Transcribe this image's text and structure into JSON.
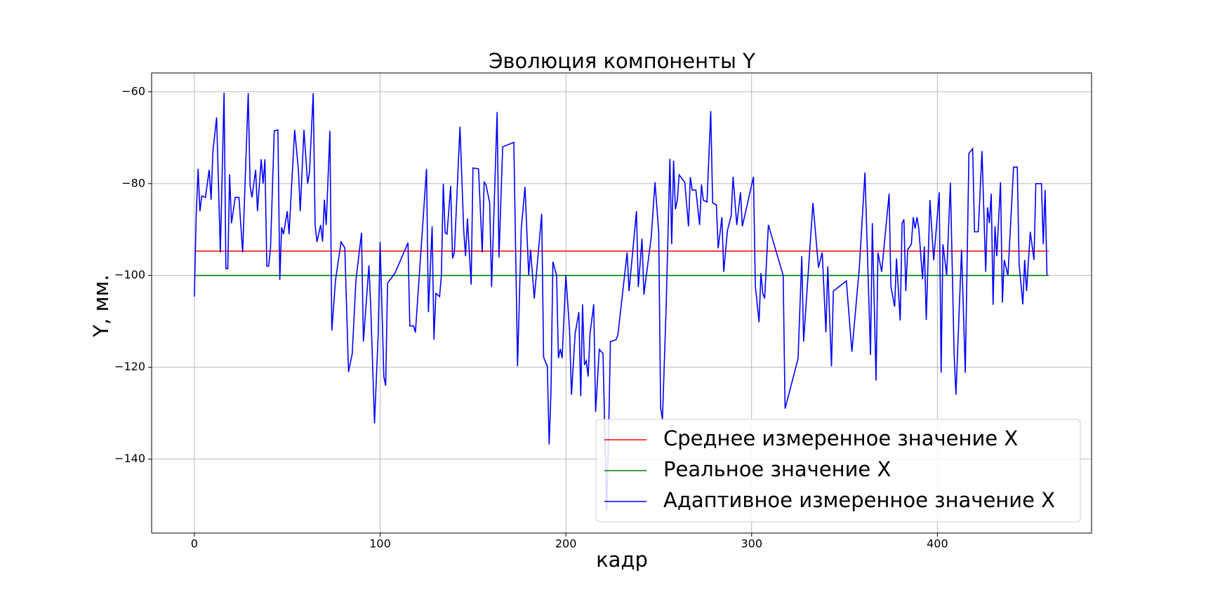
{
  "chart_data": {
    "type": "line",
    "title": "Эволюция компоненты Y",
    "xlabel": "кадр",
    "ylabel": "Y, мм.",
    "xlim": [
      -23,
      483
    ],
    "ylim": [
      -156.1,
      -55.9
    ],
    "xticks": [
      0,
      100,
      200,
      300,
      400
    ],
    "yticks": [
      {
        "value": -60,
        "label": "−60"
      },
      {
        "value": -80,
        "label": "−80"
      },
      {
        "value": -100,
        "label": "−100"
      },
      {
        "value": -120,
        "label": "−120"
      },
      {
        "value": -140,
        "label": "−140"
      }
    ],
    "grid": true,
    "legend_loc": "lower right",
    "series": [
      {
        "name": "Среднее измеренное значение X",
        "color": "#ff0000",
        "x": [
          0,
          460
        ],
        "values": [
          -94.7,
          -94.7
        ]
      },
      {
        "name": "Реальное значение X",
        "color": "#008000",
        "x": [
          0,
          460
        ],
        "values": [
          -100,
          -100
        ]
      },
      {
        "name": "Адаптивное измеренное значение X",
        "color": "#0000ff",
        "x": [
          0,
          1,
          2,
          3,
          4,
          6,
          8,
          9,
          10,
          12,
          14,
          16,
          17,
          18,
          19,
          20,
          22,
          24,
          26,
          29,
          30,
          31,
          33,
          34,
          36,
          37,
          38,
          39,
          40,
          41,
          43,
          45,
          46,
          47,
          48,
          50,
          51,
          52,
          54,
          56,
          57,
          59,
          61,
          62,
          64,
          65,
          66,
          68,
          69,
          70,
          71,
          73,
          74,
          76,
          79,
          81,
          83,
          85,
          87,
          90,
          91,
          94,
          95,
          97,
          99,
          100,
          102,
          103,
          104,
          108,
          115,
          116,
          118,
          119,
          125,
          126,
          128,
          129,
          130,
          132,
          133,
          134,
          135,
          136,
          138,
          139,
          140,
          142,
          143,
          145,
          146,
          147,
          149,
          150,
          153,
          155,
          156,
          157,
          159,
          160,
          163,
          164,
          166,
          172,
          174,
          176,
          178,
          180,
          181,
          183,
          187,
          188,
          190,
          191,
          192,
          193,
          195,
          196,
          197,
          198,
          200,
          202,
          203,
          205,
          207,
          208,
          209,
          210,
          211,
          212,
          213,
          215,
          216,
          218,
          220,
          222,
          223,
          224,
          227,
          228,
          233,
          234,
          238,
          239,
          241,
          242,
          246,
          248,
          250,
          251,
          252,
          254,
          256,
          257,
          258,
          259,
          260,
          261,
          264,
          266,
          267,
          268,
          270,
          272,
          273,
          274,
          276,
          278,
          279,
          281,
          282,
          284,
          285,
          287,
          289,
          290,
          292,
          294,
          295,
          301,
          302,
          304,
          305,
          306,
          307,
          309,
          317,
          318,
          325,
          327,
          328,
          333,
          336,
          338,
          340,
          341,
          343,
          344,
          351,
          354,
          358,
          361,
          364,
          365,
          367,
          368,
          370,
          374,
          375,
          377,
          378,
          380,
          381,
          382,
          383,
          384,
          386,
          387,
          388,
          389,
          390,
          392,
          393,
          394,
          396,
          398,
          401,
          402,
          403,
          405,
          407,
          409,
          410,
          413,
          415,
          417,
          419,
          420,
          422,
          424,
          426,
          427,
          428,
          429,
          430,
          431,
          432,
          434,
          435,
          436,
          438,
          441,
          443,
          444,
          446,
          447,
          448,
          450,
          452,
          453,
          456,
          457,
          458,
          459
        ],
        "values": [
          -104.6,
          -87,
          -76.8,
          -86,
          -82.7,
          -83,
          -77,
          -83.5,
          -73,
          -65.6,
          -95,
          -60.2,
          -98.5,
          -98.5,
          -78,
          -88.6,
          -83,
          -83,
          -95,
          -60.3,
          -80.5,
          -83,
          -77,
          -86,
          -74.7,
          -80,
          -74.7,
          -98,
          -98,
          -94,
          -68.5,
          -68.3,
          -101,
          -89.5,
          -91,
          -86,
          -91,
          -83,
          -68.3,
          -77,
          -86,
          -68.3,
          -80,
          -77.5,
          -60.3,
          -89,
          -92.7,
          -89,
          -92.6,
          -83.5,
          -89,
          -68.5,
          -112,
          -101,
          -92.7,
          -94,
          -121,
          -117,
          -101,
          -90.7,
          -114.4,
          -97.8,
          -107.6,
          -132.2,
          -112.7,
          -92.7,
          -122,
          -124,
          -101.7,
          -99.5,
          -92.9,
          -111,
          -111,
          -112.4,
          -76.8,
          -108,
          -89.3,
          -114,
          -103.9,
          -104.6,
          -100,
          -80,
          -90.7,
          -91,
          -80.5,
          -96.3,
          -95,
          -76.8,
          -67.6,
          -90.2,
          -95.8,
          -87.6,
          -102,
          -76.6,
          -76.8,
          -95,
          -79.7,
          -80.2,
          -84.2,
          -102.5,
          -64.4,
          -96.1,
          -72,
          -71,
          -119.8,
          -89.8,
          -80.7,
          -100,
          -94.4,
          -105,
          -86.6,
          -117.8,
          -119.8,
          -136.8,
          -125.4,
          -97,
          -100,
          -118,
          -116,
          -118,
          -100,
          -112,
          -126,
          -112.7,
          -108,
          -126.3,
          -106.3,
          -119.5,
          -118.6,
          -122,
          -112.7,
          -106.3,
          -129.7,
          -116.1,
          -117,
          -151.2,
          -134.6,
          -114.4,
          -114,
          -113,
          -95,
          -103.4,
          -86,
          -102.5,
          -92,
          -104.2,
          -91.5,
          -79.7,
          -90.7,
          -128.8,
          -131.4,
          -106.8,
          -74.6,
          -93.2,
          -75,
          -85.6,
          -83.6,
          -78.1,
          -79.7,
          -89.3,
          -78.6,
          -81.4,
          -81.4,
          -89,
          -80.2,
          -83.6,
          -84,
          -64.2,
          -84.2,
          -84.6,
          -94.1,
          -87.3,
          -99.2,
          -90.2,
          -87,
          -78.5,
          -89,
          -81.9,
          -89.3,
          -78.5,
          -102.2,
          -110.2,
          -99.5,
          -103.9,
          -105,
          -89,
          -100,
          -129,
          -118.1,
          -95.8,
          -114.4,
          -84.2,
          -98.3,
          -95,
          -112.4,
          -98,
          -119.8,
          -103.4,
          -101.2,
          -116.6,
          -98.3,
          -77.6,
          -117.3,
          -88.6,
          -122.9,
          -95,
          -99.2,
          -82.2,
          -102.5,
          -106.8,
          -96.3,
          -109.8,
          -88.6,
          -87.8,
          -103.4,
          -94.4,
          -93.2,
          -87.3,
          -89.8,
          -87.3,
          -89.8,
          -100.8,
          -93.7,
          -109.7,
          -83.6,
          -96.7,
          -81.9,
          -121.2,
          -93.2,
          -100,
          -79.8,
          -117,
          -126,
          -94.4,
          -121.2,
          -73.4,
          -72.4,
          -90.5,
          -90.5,
          -72.9,
          -99.2,
          -85.2,
          -88.6,
          -82.2,
          -106.4,
          -89.3,
          -95.8,
          -79.7,
          -105.9,
          -96.6,
          -100,
          -76.4,
          -76.4,
          -97.5,
          -106.3,
          -96.6,
          -103.4,
          -90.5,
          -96.6,
          -80,
          -80,
          -93.2,
          -81.4,
          -100
        ]
      }
    ]
  }
}
